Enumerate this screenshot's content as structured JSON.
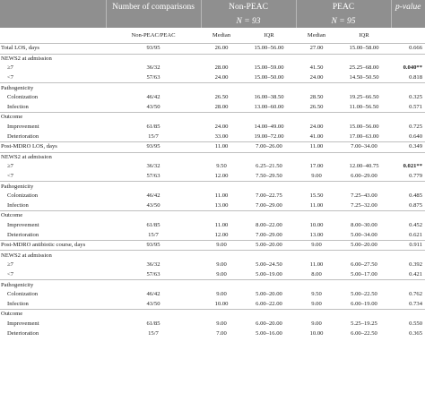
{
  "header": {
    "col_comparisons": "Number of comparisons",
    "col_nonpeac": "Non-PEAC",
    "col_peac": "PEAC",
    "col_pvalue": "p-value",
    "n_nonpeac": "N = 93",
    "n_peac": "N = 95",
    "sub_comparisons": "Non-PEAC/PEAC",
    "sub_median": "Median",
    "sub_iqr": "IQR"
  },
  "rows": [
    {
      "label": "Total LOS, days",
      "indent": false,
      "top": true,
      "comp": "93/95",
      "med1": "26.00",
      "iqr1": "15.00–56.00",
      "med2": "27.00",
      "iqr2": "15.00–58.00",
      "p": "0.666",
      "bold": false
    },
    {
      "label": "NEWS2 at admission",
      "indent": false,
      "top": true,
      "comp": "",
      "med1": "",
      "iqr1": "",
      "med2": "",
      "iqr2": "",
      "p": "",
      "bold": false
    },
    {
      "label": "≥7",
      "indent": true,
      "top": false,
      "comp": "36/32",
      "med1": "28.00",
      "iqr1": "15.00–59.00",
      "med2": "41.50",
      "iqr2": "25.25–68.00",
      "p": "0.040**",
      "bold": true
    },
    {
      "label": "<7",
      "indent": true,
      "top": false,
      "comp": "57/63",
      "med1": "24.00",
      "iqr1": "15.00–50.00",
      "med2": "24.00",
      "iqr2": "14.50–50.50",
      "p": "0.818",
      "bold": false
    },
    {
      "label": "Pathogenicity",
      "indent": false,
      "top": true,
      "comp": "",
      "med1": "",
      "iqr1": "",
      "med2": "",
      "iqr2": "",
      "p": "",
      "bold": false
    },
    {
      "label": "Colonization",
      "indent": true,
      "top": false,
      "comp": "46/42",
      "med1": "26.50",
      "iqr1": "16.00–38.50",
      "med2": "28.50",
      "iqr2": "19.25–66.50",
      "p": "0.325",
      "bold": false
    },
    {
      "label": "Infection",
      "indent": true,
      "top": false,
      "comp": "43/50",
      "med1": "28.00",
      "iqr1": "13.00–60.00",
      "med2": "26.50",
      "iqr2": "11.00–56.50",
      "p": "0.571",
      "bold": false
    },
    {
      "label": "Outcome",
      "indent": false,
      "top": true,
      "comp": "",
      "med1": "",
      "iqr1": "",
      "med2": "",
      "iqr2": "",
      "p": "",
      "bold": false
    },
    {
      "label": "Improvement",
      "indent": true,
      "top": false,
      "comp": "61/85",
      "med1": "24.00",
      "iqr1": "14.00–49.00",
      "med2": "24.00",
      "iqr2": "15.00–56.00",
      "p": "0.725",
      "bold": false
    },
    {
      "label": "Deterioration",
      "indent": true,
      "top": false,
      "comp": "15/7",
      "med1": "33.00",
      "iqr1": "19.00–72.00",
      "med2": "41.00",
      "iqr2": "17.00–63.00",
      "p": "0.640",
      "bold": false
    },
    {
      "label": "Post-MDRO LOS, days",
      "indent": false,
      "top": true,
      "comp": "93/95",
      "med1": "11.00",
      "iqr1": "7.00–26.00",
      "med2": "11.00",
      "iqr2": "7.00–34.00",
      "p": "0.349",
      "bold": false
    },
    {
      "label": "NEWS2 at admission",
      "indent": false,
      "top": true,
      "comp": "",
      "med1": "",
      "iqr1": "",
      "med2": "",
      "iqr2": "",
      "p": "",
      "bold": false
    },
    {
      "label": "≥7",
      "indent": true,
      "top": false,
      "comp": "36/32",
      "med1": "9.50",
      "iqr1": "6.25–21.50",
      "med2": "17.00",
      "iqr2": "12.00–40.75",
      "p": "0.021**",
      "bold": true
    },
    {
      "label": "<7",
      "indent": true,
      "top": false,
      "comp": "57/63",
      "med1": "12.00",
      "iqr1": "7.50–29.50",
      "med2": "9.00",
      "iqr2": "6.00–29.00",
      "p": "0.779",
      "bold": false
    },
    {
      "label": "Pathogenicity",
      "indent": false,
      "top": true,
      "comp": "",
      "med1": "",
      "iqr1": "",
      "med2": "",
      "iqr2": "",
      "p": "",
      "bold": false
    },
    {
      "label": "Colonization",
      "indent": true,
      "top": false,
      "comp": "46/42",
      "med1": "11.00",
      "iqr1": "7.00–22.75",
      "med2": "15.50",
      "iqr2": "7.25–43.00",
      "p": "0.485",
      "bold": false
    },
    {
      "label": "Infection",
      "indent": true,
      "top": false,
      "comp": "43/50",
      "med1": "13.00",
      "iqr1": "7.00–29.00",
      "med2": "11.00",
      "iqr2": "7.25–32.00",
      "p": "0.875",
      "bold": false
    },
    {
      "label": "Outcome",
      "indent": false,
      "top": true,
      "comp": "",
      "med1": "",
      "iqr1": "",
      "med2": "",
      "iqr2": "",
      "p": "",
      "bold": false
    },
    {
      "label": "Improvement",
      "indent": true,
      "top": false,
      "comp": "61/85",
      "med1": "11.00",
      "iqr1": "8.00–22.00",
      "med2": "10.00",
      "iqr2": "8.00–30.00",
      "p": "0.452",
      "bold": false
    },
    {
      "label": "Deterioration",
      "indent": true,
      "top": false,
      "comp": "15/7",
      "med1": "12.00",
      "iqr1": "7.00–29.00",
      "med2": "13.00",
      "iqr2": "5.00–34.00",
      "p": "0.621",
      "bold": false
    },
    {
      "label": "Post-MDRO antibiotic course, days",
      "indent": false,
      "top": true,
      "comp": "93/95",
      "med1": "9.00",
      "iqr1": "5.00–20.00",
      "med2": "9.00",
      "iqr2": "5.00–20.00",
      "p": "0.911",
      "bold": false
    },
    {
      "label": "NEWS2 at admission",
      "indent": false,
      "top": true,
      "comp": "",
      "med1": "",
      "iqr1": "",
      "med2": "",
      "iqr2": "",
      "p": "",
      "bold": false
    },
    {
      "label": "≥7",
      "indent": true,
      "top": false,
      "comp": "36/32",
      "med1": "9.00",
      "iqr1": "5.00–24.50",
      "med2": "11.00",
      "iqr2": "6.00–27.50",
      "p": "0.392",
      "bold": false
    },
    {
      "label": "<7",
      "indent": true,
      "top": false,
      "comp": "57/63",
      "med1": "9.00",
      "iqr1": "5.00–19.00",
      "med2": "8.00",
      "iqr2": "5.00–17.00",
      "p": "0.421",
      "bold": false
    },
    {
      "label": "Pathogenicity",
      "indent": false,
      "top": true,
      "comp": "",
      "med1": "",
      "iqr1": "",
      "med2": "",
      "iqr2": "",
      "p": "",
      "bold": false
    },
    {
      "label": "Colonization",
      "indent": true,
      "top": false,
      "comp": "46/42",
      "med1": "9.00",
      "iqr1": "5.00–20.00",
      "med2": "9.50",
      "iqr2": "5.00–22.50",
      "p": "0.762",
      "bold": false
    },
    {
      "label": "Infection",
      "indent": true,
      "top": false,
      "comp": "43/50",
      "med1": "10.00",
      "iqr1": "6.00–22.00",
      "med2": "9.00",
      "iqr2": "6.00–19.00",
      "p": "0.734",
      "bold": false
    },
    {
      "label": "Outcome",
      "indent": false,
      "top": true,
      "comp": "",
      "med1": "",
      "iqr1": "",
      "med2": "",
      "iqr2": "",
      "p": "",
      "bold": false
    },
    {
      "label": "Improvement",
      "indent": true,
      "top": false,
      "comp": "61/85",
      "med1": "9.00",
      "iqr1": "6.00–20.00",
      "med2": "9.00",
      "iqr2": "5.25–19.25",
      "p": "0.550",
      "bold": false
    },
    {
      "label": "Deterioration",
      "indent": true,
      "top": false,
      "comp": "15/7",
      "med1": "7.00",
      "iqr1": "5.00–16.00",
      "med2": "10.00",
      "iqr2": "6.00–22.50",
      "p": "0.365",
      "bold": false
    }
  ]
}
